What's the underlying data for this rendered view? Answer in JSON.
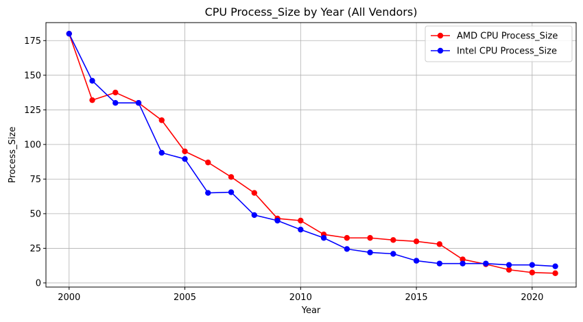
{
  "chart_data": {
    "type": "line",
    "title": "CPU Process_Size by Year (All Vendors)",
    "xlabel": "Year",
    "ylabel": "Process_Size",
    "xlim": [
      1999,
      2021.9
    ],
    "ylim": [
      -3,
      188
    ],
    "xticks": [
      2000,
      2005,
      2010,
      2015,
      2020
    ],
    "yticks": [
      0,
      25,
      50,
      75,
      100,
      125,
      150,
      175
    ],
    "grid": true,
    "legend_position": "top-right",
    "x": [
      2000,
      2001,
      2002,
      2003,
      2004,
      2005,
      2006,
      2007,
      2008,
      2009,
      2010,
      2011,
      2012,
      2013,
      2014,
      2015,
      2016,
      2017,
      2018,
      2019,
      2020,
      2021
    ],
    "series": [
      {
        "name": "AMD CPU Process_Size",
        "color": "#ff0000",
        "values": [
          180,
          132,
          137.5,
          130,
          117.5,
          95,
          87,
          76.5,
          65,
          46.5,
          45,
          35,
          32.5,
          32.5,
          31,
          30,
          28,
          17,
          13.5,
          9.5,
          7.5,
          7
        ]
      },
      {
        "name": "Intel CPU Process_Size",
        "color": "#0000ff",
        "values": [
          180,
          146,
          130,
          130,
          94,
          89.5,
          65,
          65.5,
          49,
          45,
          38.5,
          32.5,
          24.5,
          22,
          21,
          16,
          14,
          14,
          14,
          13,
          13,
          12
        ]
      }
    ]
  }
}
